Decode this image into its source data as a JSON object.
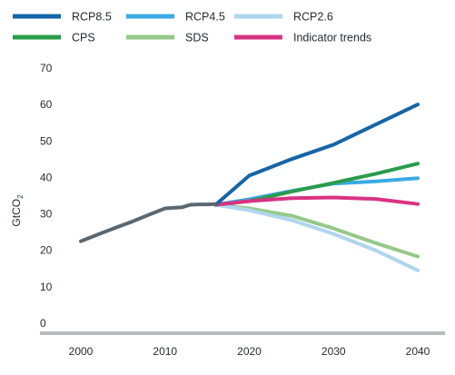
{
  "chart_data": {
    "type": "line",
    "ylabel": "GtCO",
    "ylabel_subscript": "2",
    "ylim": [
      0,
      70
    ],
    "yticks": [
      0,
      10,
      20,
      30,
      40,
      50,
      60,
      70
    ],
    "xlim": [
      1997,
      2042
    ],
    "xticks": [
      2000,
      2010,
      2020,
      2030,
      2040
    ],
    "grid": false,
    "legend_position": "top",
    "series": [
      {
        "name": "RCP8.5",
        "color": "#1565a8",
        "x": [
          2016,
          2018,
          2020,
          2025,
          2030,
          2035,
          2040
        ],
        "y": [
          34,
          38,
          42,
          46.5,
          50.5,
          56,
          61.5
        ]
      },
      {
        "name": "RCP4.5",
        "color": "#3aabe2",
        "x": [
          2016,
          2020,
          2025,
          2030,
          2035,
          2040
        ],
        "y": [
          34,
          35.5,
          37.8,
          39.8,
          40.4,
          41.3
        ]
      },
      {
        "name": "RCP2.6",
        "color": "#aed6ee",
        "x": [
          2016,
          2020,
          2025,
          2030,
          2035,
          2040
        ],
        "y": [
          34,
          32.5,
          29.8,
          26,
          21.5,
          16
        ]
      },
      {
        "name": "CPS",
        "color": "#2a9c4b",
        "x": [
          2016,
          2020,
          2025,
          2030,
          2035,
          2040
        ],
        "y": [
          34,
          35,
          37.6,
          40,
          42.5,
          45.3
        ]
      },
      {
        "name": "SDS",
        "color": "#95c98a",
        "x": [
          2016,
          2020,
          2025,
          2030,
          2035,
          2040
        ],
        "y": [
          34,
          33,
          31,
          27.5,
          23.5,
          19.8
        ]
      },
      {
        "name": "Indicator trends",
        "color": "#d93383",
        "x": [
          2016,
          2020,
          2025,
          2030,
          2035,
          2040
        ],
        "y": [
          34,
          35,
          35.8,
          36,
          35.6,
          34.2
        ]
      },
      {
        "name": "",
        "color": "#5b6770",
        "x": [
          2000,
          2002,
          2004,
          2006,
          2008,
          2010,
          2012,
          2013,
          2014,
          2015,
          2016
        ],
        "y": [
          24,
          25.8,
          27.6,
          29.3,
          31.2,
          33,
          33.3,
          34,
          34.1,
          34.1,
          34.2
        ]
      }
    ]
  }
}
